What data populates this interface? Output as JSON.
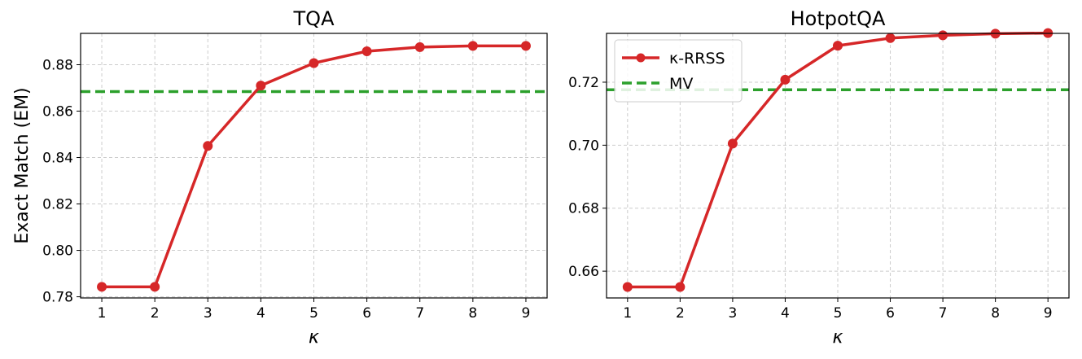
{
  "chart_data": [
    {
      "type": "line",
      "title": "TQA",
      "xlabel": "κ",
      "ylabel": "Exact Match (EM)",
      "x": [
        1,
        2,
        3,
        4,
        5,
        6,
        7,
        8,
        9
      ],
      "xlim": [
        0.6,
        9.4
      ],
      "ylim": [
        0.7795,
        0.8935
      ],
      "xticks": [
        "1",
        "2",
        "3",
        "4",
        "5",
        "6",
        "7",
        "8",
        "9"
      ],
      "yticks": [
        "0.78",
        "0.80",
        "0.82",
        "0.84",
        "0.86",
        "0.88"
      ],
      "grid": true,
      "series": [
        {
          "name": "κ-RRSS",
          "style": "solid",
          "marker": "circle",
          "color": "#d62728",
          "values": [
            0.7843,
            0.7843,
            0.845,
            0.871,
            0.8807,
            0.8858,
            0.8876,
            0.8881,
            0.8881
          ]
        },
        {
          "name": "MV",
          "style": "dashed",
          "marker": "none",
          "color": "#2ca02c",
          "constant": 0.8684
        }
      ]
    },
    {
      "type": "line",
      "title": "HotpotQA",
      "xlabel": "κ",
      "ylabel": "",
      "x": [
        1,
        2,
        3,
        4,
        5,
        6,
        7,
        8,
        9
      ],
      "xlim": [
        0.6,
        9.4
      ],
      "ylim": [
        0.6515,
        0.7355
      ],
      "xticks": [
        "1",
        "2",
        "3",
        "4",
        "5",
        "6",
        "7",
        "8",
        "9"
      ],
      "yticks": [
        "0.66",
        "0.68",
        "0.70",
        "0.72"
      ],
      "grid": true,
      "legend": "top-left",
      "series": [
        {
          "name": "κ-RRSS",
          "style": "solid",
          "marker": "circle",
          "color": "#d62728",
          "values": [
            0.655,
            0.655,
            0.7005,
            0.7208,
            0.7316,
            0.734,
            0.7349,
            0.7354,
            0.7356
          ]
        },
        {
          "name": "MV",
          "style": "dashed",
          "marker": "none",
          "color": "#2ca02c",
          "constant": 0.7176
        }
      ]
    }
  ]
}
